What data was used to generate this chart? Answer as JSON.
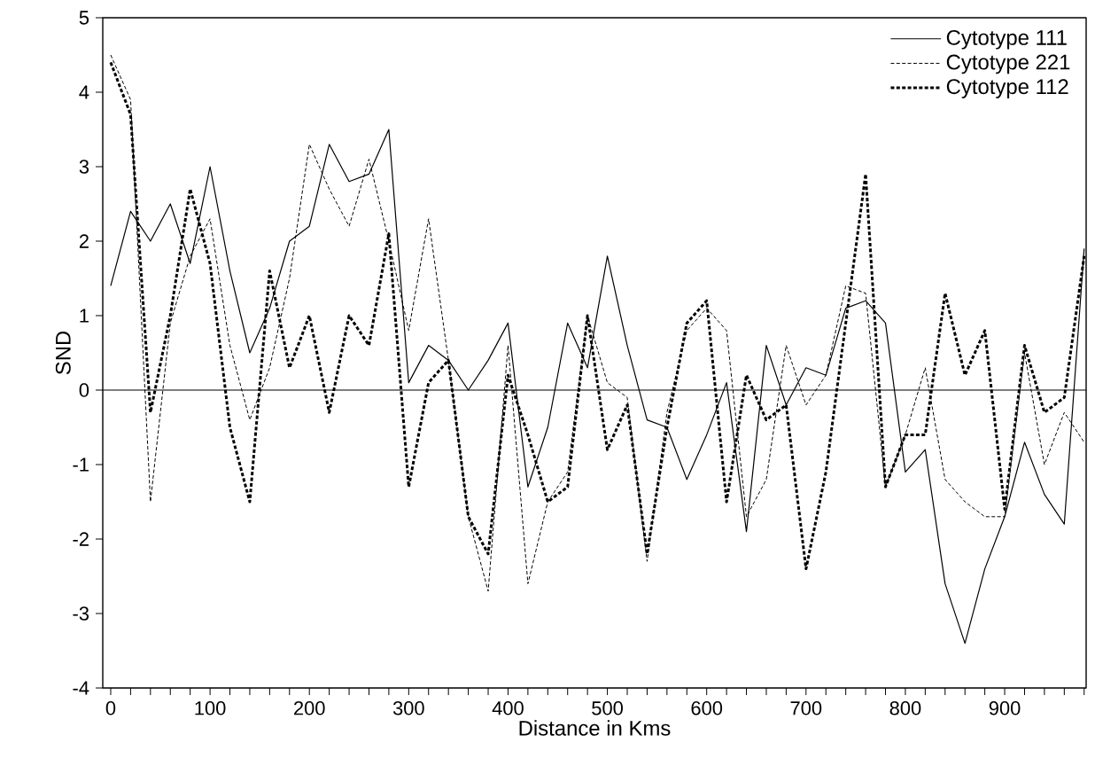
{
  "chart_data": {
    "type": "line",
    "xlabel": "Distance in Kms",
    "ylabel": "SND",
    "x": [
      0,
      20,
      40,
      60,
      80,
      100,
      120,
      140,
      160,
      180,
      200,
      220,
      240,
      260,
      280,
      300,
      320,
      340,
      360,
      380,
      400,
      420,
      440,
      460,
      480,
      500,
      520,
      540,
      560,
      580,
      600,
      620,
      640,
      660,
      680,
      700,
      720,
      740,
      760,
      780,
      800,
      820,
      840,
      860,
      880,
      900,
      920,
      940,
      960,
      980
    ],
    "series": [
      {
        "name": "Cytotype 111",
        "color": "#000000",
        "line_style": "solid",
        "values": [
          1.4,
          2.4,
          2.0,
          2.5,
          1.7,
          3.0,
          1.6,
          0.5,
          1.1,
          2.0,
          2.2,
          3.3,
          2.8,
          2.9,
          3.5,
          0.1,
          0.6,
          0.4,
          0.0,
          0.4,
          0.9,
          -1.3,
          -0.5,
          0.9,
          0.3,
          1.8,
          0.6,
          -0.4,
          -0.5,
          -1.2,
          -0.6,
          0.1,
          -1.9,
          0.6,
          -0.2,
          0.3,
          0.2,
          1.1,
          1.2,
          0.9,
          -1.1,
          -0.8,
          -2.6,
          -3.4,
          -2.4,
          -1.7,
          -0.7,
          -1.4,
          -1.8,
          1.9
        ]
      },
      {
        "name": "Cytotype 221",
        "color": "#000000",
        "line_style": "dashed",
        "values": [
          4.5,
          3.9,
          -1.5,
          0.9,
          1.8,
          2.3,
          0.6,
          -0.4,
          0.3,
          1.5,
          3.3,
          2.7,
          2.2,
          3.1,
          2.0,
          0.8,
          2.3,
          0.4,
          -1.7,
          -2.7,
          0.6,
          -2.6,
          -1.5,
          -1.1,
          1.0,
          0.1,
          -0.1,
          -2.3,
          -0.3,
          0.8,
          1.1,
          0.8,
          -1.7,
          -1.2,
          0.6,
          -0.2,
          0.2,
          1.4,
          1.3,
          -1.3,
          -0.6,
          0.3,
          -1.2,
          -1.5,
          -1.7,
          -1.7,
          0.5,
          -1.0,
          -0.3,
          -0.7
        ]
      },
      {
        "name": "Cytotype 112",
        "color": "#000000",
        "line_style": "dotted",
        "values": [
          4.4,
          3.7,
          -0.3,
          1.0,
          2.7,
          1.7,
          -0.5,
          -1.5,
          1.6,
          0.3,
          1.0,
          -0.3,
          1.0,
          0.6,
          2.1,
          -1.3,
          0.1,
          0.4,
          -1.7,
          -2.2,
          0.2,
          -0.6,
          -1.5,
          -1.3,
          1.0,
          -0.8,
          -0.2,
          -2.2,
          -0.5,
          0.9,
          1.2,
          -1.5,
          0.2,
          -0.4,
          -0.2,
          -2.4,
          -1.1,
          0.9,
          2.9,
          -1.3,
          -0.6,
          -0.6,
          1.3,
          0.2,
          0.8,
          -1.6,
          0.6,
          -0.3,
          -0.1,
          1.8
        ]
      }
    ],
    "xlim": [
      -8,
      982
    ],
    "ylim": [
      -4,
      5
    ],
    "xticks": [
      0,
      {
        "value": 20,
        "label": null
      },
      {
        "value": 40,
        "label": null
      },
      {
        "value": 60,
        "label": null
      },
      {
        "value": 80,
        "label": null
      },
      100,
      {
        "value": 120,
        "label": null
      },
      {
        "value": 140,
        "label": null
      },
      {
        "value": 160,
        "label": null
      },
      {
        "value": 180,
        "label": null
      },
      200,
      {
        "value": 220,
        "label": null
      },
      {
        "value": 240,
        "label": null
      },
      {
        "value": 260,
        "label": null
      },
      {
        "value": 280,
        "label": null
      },
      300,
      {
        "value": 320,
        "label": null
      },
      {
        "value": 340,
        "label": null
      },
      {
        "value": 360,
        "label": null
      },
      {
        "value": 380,
        "label": null
      },
      400,
      {
        "value": 420,
        "label": null
      },
      {
        "value": 440,
        "label": null
      },
      {
        "value": 460,
        "label": null
      },
      {
        "value": 480,
        "label": null
      },
      500,
      {
        "value": 520,
        "label": null
      },
      {
        "value": 540,
        "label": null
      },
      {
        "value": 560,
        "label": null
      },
      {
        "value": 580,
        "label": null
      },
      600,
      {
        "value": 620,
        "label": null
      },
      {
        "value": 640,
        "label": null
      },
      {
        "value": 660,
        "label": null
      },
      {
        "value": 680,
        "label": null
      },
      700,
      {
        "value": 720,
        "label": null
      },
      {
        "value": 740,
        "label": null
      },
      {
        "value": 760,
        "label": null
      },
      {
        "value": 780,
        "label": null
      },
      800,
      {
        "value": 820,
        "label": null
      },
      {
        "value": 840,
        "label": null
      },
      {
        "value": 860,
        "label": null
      },
      {
        "value": 880,
        "label": null
      },
      900,
      {
        "value": 920,
        "label": null
      },
      {
        "value": 940,
        "label": null
      },
      {
        "value": 960,
        "label": null
      },
      {
        "value": 980,
        "label": null
      }
    ],
    "yticks": [
      -4,
      -3,
      -2,
      -1,
      0,
      1,
      2,
      3,
      4,
      5
    ],
    "ref_lines": [
      {
        "axis": "y",
        "value": 0,
        "color": "#000000",
        "line_style": "solid"
      }
    ],
    "grid": false,
    "legend": "top right",
    "marker": "none"
  }
}
